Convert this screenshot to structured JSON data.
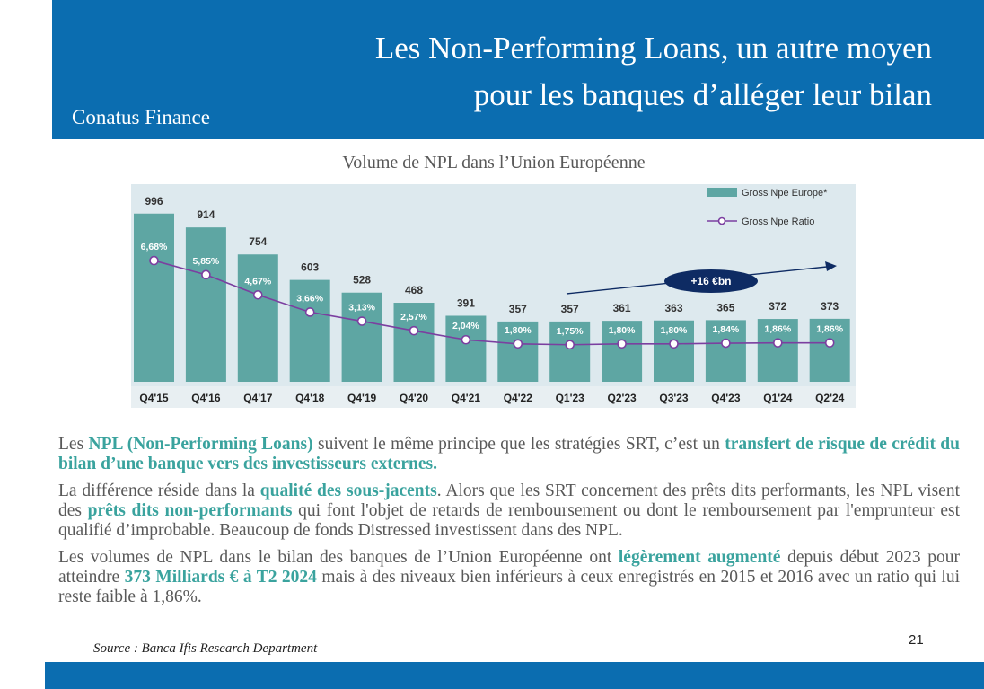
{
  "header": {
    "title_line1": "Les Non-Performing Loans, un autre moyen",
    "title_line2": "pour les banques d’alléger leur bilan",
    "brand": "Conatus Finance"
  },
  "chart_data": {
    "type": "bar",
    "title": "Volume de NPL dans l’Union Européenne",
    "categories": [
      "Q4'15",
      "Q4'16",
      "Q4'17",
      "Q4'18",
      "Q4'19",
      "Q4'20",
      "Q4'21",
      "Q4'22",
      "Q1'23",
      "Q2'23",
      "Q3'23",
      "Q4'23",
      "Q1'24",
      "Q2'24"
    ],
    "series": [
      {
        "name": "Gross Npe Europe*",
        "type": "bar",
        "values": [
          996,
          914,
          754,
          603,
          528,
          468,
          391,
          357,
          357,
          361,
          363,
          365,
          372,
          373
        ]
      },
      {
        "name": "Gross Npe Ratio",
        "type": "line",
        "values": [
          6.68,
          5.85,
          4.67,
          3.66,
          3.13,
          2.57,
          2.04,
          1.8,
          1.75,
          1.8,
          1.8,
          1.84,
          1.86,
          1.86
        ],
        "labels": [
          "6,68%",
          "5,85%",
          "4,67%",
          "3,66%",
          "3,13%",
          "2,57%",
          "2,04%",
          "1,80%",
          "1,75%",
          "1,80%",
          "1,80%",
          "1,84%",
          "1,86%",
          "1,86%"
        ]
      }
    ],
    "annotation": "+16 €bn",
    "legend_position": "top-right",
    "colors": {
      "bar": "#5ea6a3",
      "line": "#7b3fa0",
      "annotation_bg": "#0e2b63",
      "background": "#dde9ee"
    }
  },
  "text": {
    "p1_a": "Les ",
    "p1_b": "NPL (Non-Performing Loans)",
    "p1_c": " suivent le même principe que les stratégies SRT, c’est un ",
    "p1_d": "transfert de risque de crédit du bilan d’une banque vers des investisseurs externes.",
    "p2_a": "La différence réside dans la ",
    "p2_b": "qualité des sous-jacents",
    "p2_c": ". Alors que les SRT concernent des prêts dits performants, les NPL visent des ",
    "p2_d": "prêts dits non-performants",
    "p2_e": " qui font l'objet de retards de remboursement ou dont le remboursement par l'emprunteur est qualifié d’improbable. Beaucoup de fonds Distressed investissent dans des NPL.",
    "p3_a": "Les volumes de NPL dans le bilan des banques de l’Union Européenne ont ",
    "p3_b": "légèrement augmenté",
    "p3_c": " depuis début 2023 pour atteindre ",
    "p3_d": "373 Milliards € à T2 2024",
    "p3_e": " mais à des niveaux bien inférieurs à ceux enregistrés en 2015 et 2016 avec un ratio qui lui reste faible à 1,86%."
  },
  "source": "Source : Banca Ifis Research Department",
  "page_number": "21"
}
